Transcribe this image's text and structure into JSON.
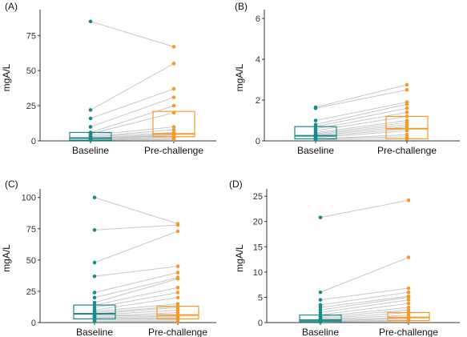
{
  "chart_data": [
    {
      "type": "scatter",
      "panel_label": "(A)",
      "ylabel": "mgA/L",
      "categories": [
        "Baseline",
        "Pre-challenge"
      ],
      "ylim": [
        0,
        90
      ],
      "yticks": [
        0,
        25,
        50,
        75
      ],
      "colors": [
        "#1a8a8a",
        "#f39a2b"
      ],
      "boxes": [
        {
          "q1": 0.5,
          "median": 2,
          "q3": 6
        },
        {
          "q1": 3,
          "median": 5,
          "q3": 21
        }
      ],
      "pairs": [
        [
          85,
          67
        ],
        [
          22,
          55
        ],
        [
          16,
          37
        ],
        [
          10,
          31
        ],
        [
          6,
          25
        ],
        [
          5,
          20
        ],
        [
          4,
          10
        ],
        [
          3,
          8
        ],
        [
          3,
          6
        ],
        [
          2,
          5
        ],
        [
          2,
          5
        ],
        [
          2,
          4
        ],
        [
          1,
          4
        ],
        [
          1,
          3
        ],
        [
          1,
          3
        ],
        [
          0.5,
          2
        ],
        [
          0.5,
          2
        ],
        [
          0.5,
          1
        ]
      ]
    },
    {
      "type": "scatter",
      "panel_label": "(B)",
      "ylabel": "mgA/L",
      "categories": [
        "Baseline",
        "Pre-challenge"
      ],
      "ylim": [
        0,
        6.2
      ],
      "yticks": [
        0,
        2,
        4,
        6
      ],
      "colors": [
        "#1a8a8a",
        "#f39a2b"
      ],
      "boxes": [
        {
          "q1": 0.1,
          "median": 0.25,
          "q3": 0.7
        },
        {
          "q1": 0.1,
          "median": 0.6,
          "q3": 1.2
        }
      ],
      "pairs": [
        [
          1.65,
          2.75
        ],
        [
          1.6,
          2.5
        ],
        [
          1.0,
          1.9
        ],
        [
          0.8,
          1.8
        ],
        [
          0.7,
          1.6
        ],
        [
          0.6,
          1.4
        ],
        [
          0.5,
          1.2
        ],
        [
          0.4,
          1.0
        ],
        [
          0.35,
          0.9
        ],
        [
          0.3,
          0.8
        ],
        [
          0.25,
          0.7
        ],
        [
          0.2,
          0.6
        ],
        [
          0.15,
          0.5
        ],
        [
          0.1,
          0.3
        ],
        [
          0.1,
          0.2
        ],
        [
          0.05,
          0.1
        ]
      ]
    },
    {
      "type": "scatter",
      "panel_label": "(C)",
      "ylabel": "mgA/L",
      "categories": [
        "Baseline",
        "Pre-challenge"
      ],
      "ylim": [
        0,
        103
      ],
      "yticks": [
        0,
        25,
        50,
        75,
        100
      ],
      "colors": [
        "#1a8a8a",
        "#f39a2b"
      ],
      "boxes": [
        {
          "q1": 3,
          "median": 7,
          "q3": 14
        },
        {
          "q1": 3,
          "median": 6,
          "q3": 13
        }
      ],
      "pairs": [
        [
          100,
          79
        ],
        [
          74,
          78
        ],
        [
          48,
          73
        ],
        [
          37,
          45
        ],
        [
          24,
          40
        ],
        [
          20,
          36
        ],
        [
          16,
          35
        ],
        [
          14,
          28
        ],
        [
          12,
          24
        ],
        [
          10,
          20
        ],
        [
          9,
          15
        ],
        [
          8,
          13
        ],
        [
          7,
          12
        ],
        [
          6,
          10
        ],
        [
          5,
          8
        ],
        [
          5,
          6
        ],
        [
          4,
          5
        ],
        [
          3,
          4
        ],
        [
          3,
          3
        ],
        [
          2,
          2
        ],
        [
          1,
          1
        ]
      ]
    },
    {
      "type": "scatter",
      "panel_label": "(D)",
      "ylabel": "mgA/L",
      "categories": [
        "Baseline",
        "Pre-challenge"
      ],
      "ylim": [
        0,
        25.5
      ],
      "yticks": [
        0,
        5,
        10,
        15,
        20,
        25
      ],
      "colors": [
        "#1a8a8a",
        "#f39a2b"
      ],
      "boxes": [
        {
          "q1": 0.2,
          "median": 0.5,
          "q3": 1.5
        },
        {
          "q1": 0.4,
          "median": 1.0,
          "q3": 2.0
        }
      ],
      "pairs": [
        [
          20.8,
          24.2
        ],
        [
          6,
          12.9
        ],
        [
          4.5,
          6.8
        ],
        [
          3.5,
          6.0
        ],
        [
          3,
          5.2
        ],
        [
          2.5,
          5.0
        ],
        [
          2,
          4.5
        ],
        [
          1.5,
          3.8
        ],
        [
          1.2,
          3.0
        ],
        [
          1,
          2.5
        ],
        [
          0.8,
          2.0
        ],
        [
          0.6,
          1.5
        ],
        [
          0.5,
          1.0
        ],
        [
          0.3,
          0.8
        ],
        [
          0.2,
          0.5
        ],
        [
          0.1,
          0.3
        ]
      ]
    }
  ]
}
